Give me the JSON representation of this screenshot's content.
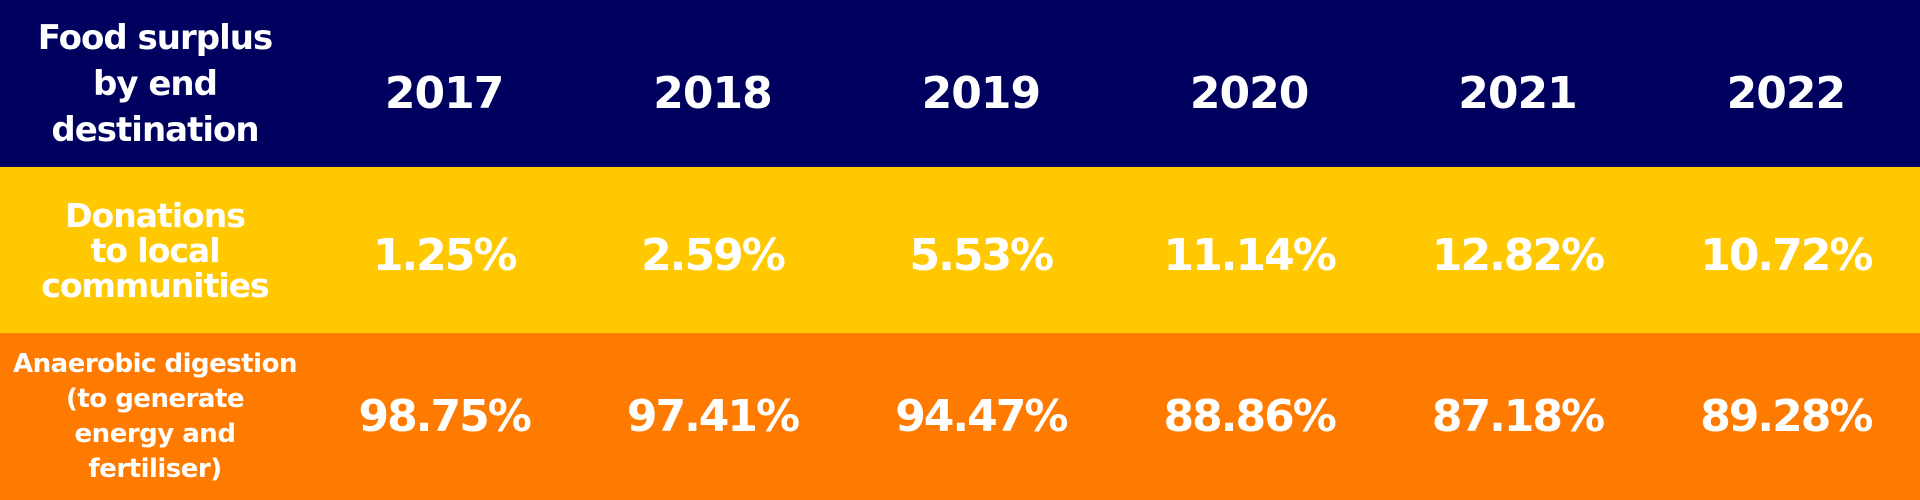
{
  "chart_data": {
    "type": "table",
    "corner_header": "Food surplus\nby end\ndestination",
    "columns": [
      "2017",
      "2018",
      "2019",
      "2020",
      "2021",
      "2022"
    ],
    "rows": [
      {
        "label": "Donations\nto local\ncommunities",
        "values": [
          "1.25%",
          "2.59%",
          "5.53%",
          "11.14%",
          "12.82%",
          "10.72%"
        ],
        "color": "#ffc800"
      },
      {
        "label": "Anaerobic digestion\n(to generate\nenergy and fertiliser)",
        "values": [
          "98.75%",
          "97.41%",
          "94.47%",
          "88.86%",
          "87.18%",
          "89.28%"
        ],
        "color": "#ff7b00"
      }
    ],
    "header_color": "#00005f"
  }
}
